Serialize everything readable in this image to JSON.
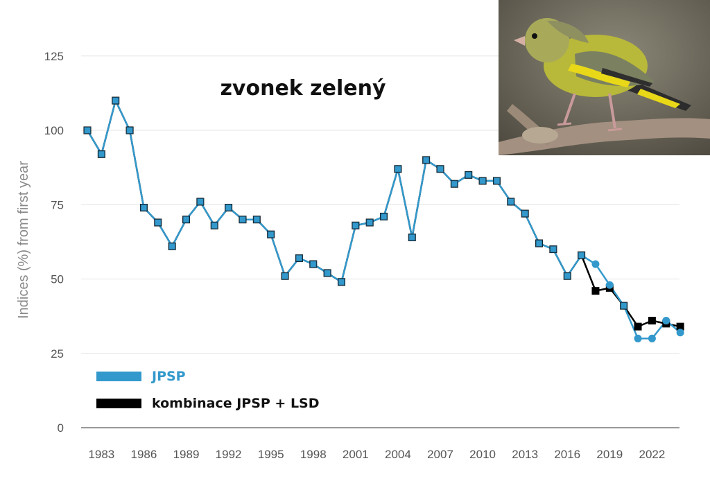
{
  "chart_data": {
    "type": "line",
    "title": "zvonek zelený",
    "ylabel": "Indices (%) from first year",
    "xlabel": "",
    "ylim": [
      0,
      135
    ],
    "yticks": [
      "0",
      "25",
      "50",
      "75",
      "100",
      "125"
    ],
    "xticks": [
      "1983",
      "1986",
      "1989",
      "1992",
      "1995",
      "1998",
      "2001",
      "2004",
      "2007",
      "2010",
      "2013",
      "2016",
      "2019",
      "2022"
    ],
    "grid": "horizontal",
    "legend_position": "bottom-left",
    "x": [
      1982,
      1983,
      1984,
      1985,
      1986,
      1987,
      1988,
      1989,
      1990,
      1991,
      1992,
      1993,
      1994,
      1995,
      1996,
      1997,
      1998,
      1999,
      2000,
      2001,
      2002,
      2003,
      2004,
      2005,
      2006,
      2007,
      2008,
      2009,
      2010,
      2011,
      2012,
      2013,
      2014,
      2015,
      2016,
      2017,
      2018,
      2019,
      2020,
      2021,
      2022,
      2023,
      2024
    ],
    "series": [
      {
        "name": "JPSP",
        "color": "#3399cc",
        "marker": "circle",
        "values": [
          100,
          92,
          110,
          100,
          74,
          69,
          61,
          70,
          76,
          68,
          74,
          70,
          70,
          65,
          51,
          57,
          55,
          52,
          49,
          68,
          69,
          71,
          87,
          64,
          90,
          87,
          82,
          85,
          83,
          83,
          76,
          72,
          62,
          60,
          51,
          58,
          55,
          48,
          41,
          30,
          30,
          36,
          32
        ]
      },
      {
        "name": "kombinace JPSP + LSD",
        "color": "#000000",
        "marker": "square",
        "values": [
          100,
          92,
          110,
          100,
          74,
          69,
          61,
          70,
          76,
          68,
          74,
          70,
          70,
          65,
          51,
          57,
          55,
          52,
          49,
          68,
          69,
          71,
          87,
          64,
          90,
          87,
          82,
          85,
          83,
          83,
          76,
          72,
          62,
          60,
          51,
          58,
          46,
          47,
          41,
          34,
          36,
          35,
          34
        ]
      }
    ]
  },
  "photo": {
    "subject": "greenfinch-on-branch",
    "background_color": "#6e6a5a",
    "bird_body_color": "#b8b83a",
    "wing_color": "#7a8a60",
    "wing_yellow": "#e8d818",
    "branch_color": "#a89078"
  }
}
